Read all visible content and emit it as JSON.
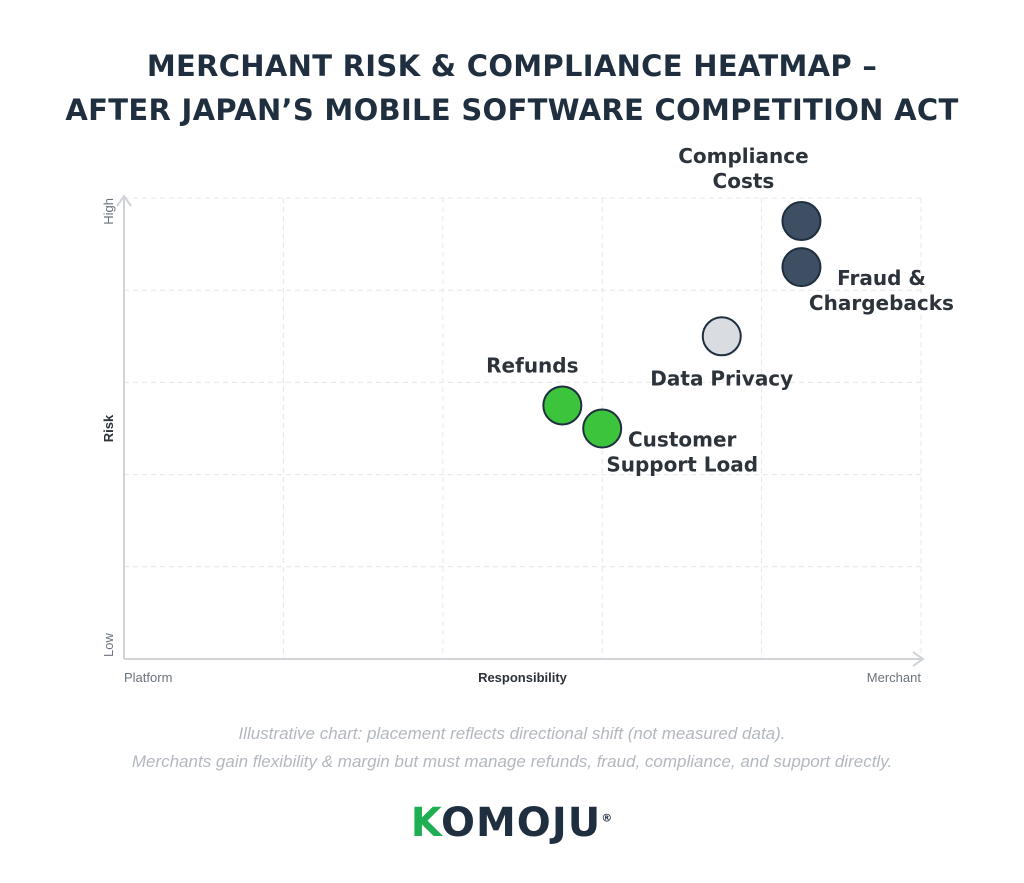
{
  "header": {
    "title_line1": "MERCHANT RISK & COMPLIANCE HEATMAP –",
    "title_line2": "AFTER JAPAN’S MOBILE SOFTWARE COMPETITION ACT"
  },
  "chart_data": {
    "type": "scatter",
    "title": "MERCHANT RISK & COMPLIANCE HEATMAP – AFTER JAPAN’S MOBILE SOFTWARE COMPETITION ACT",
    "xlabel": "Responsibility",
    "ylabel": "Risk",
    "x_tick_labels": [
      "Platform",
      "Merchant"
    ],
    "y_tick_labels": [
      "Low",
      "High"
    ],
    "xlim": [
      0,
      100
    ],
    "ylim": [
      0,
      100
    ],
    "grid": true,
    "legend": "none",
    "points": [
      {
        "label": "Compliance Costs",
        "x": 85,
        "y": 95,
        "color": "#3f4f63",
        "label_pos": "above"
      },
      {
        "label": "Fraud & Chargebacks",
        "x": 85,
        "y": 85,
        "color": "#3f4f63",
        "label_pos": "right-below"
      },
      {
        "label": "Data Privacy",
        "x": 75,
        "y": 70,
        "color": "#d9dde2",
        "label_pos": "below"
      },
      {
        "label": "Refunds",
        "x": 55,
        "y": 55,
        "color": "#3cc43c",
        "label_pos": "above"
      },
      {
        "label": "Customer Support Load",
        "x": 60,
        "y": 50,
        "color": "#3cc43c",
        "label_pos": "right-below"
      }
    ]
  },
  "footer": {
    "note_line1": "Illustrative chart: placement reflects directional shift (not measured data).",
    "note_line2": "Merchants gain flexibility & margin but must manage refunds, fraud, compliance, and support directly.",
    "logo_accent": "K",
    "logo_rest": "OMOJU",
    "logo_mark": "®"
  },
  "colors": {
    "title": "#1f2f3f",
    "axis": "#d0d4d9",
    "grid": "#e4e7ea",
    "label": "#2d333a",
    "brand_green": "#1fae52"
  }
}
